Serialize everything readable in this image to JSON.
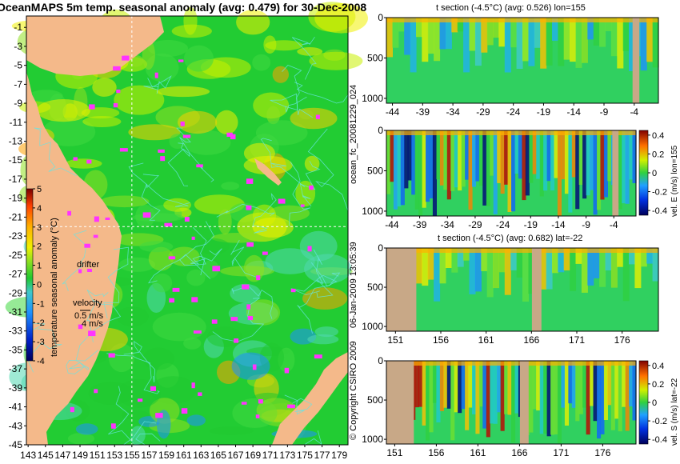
{
  "chart_data": [
    {
      "id": "map",
      "type": "heatmap",
      "title": "OceanMAPS 5m temp. seasonal anomaly (avg: 0.479) for 30-Dec-2008",
      "xticks": [
        143,
        145,
        147,
        149,
        151,
        153,
        155,
        157,
        159,
        161,
        163,
        165,
        167,
        169,
        171,
        173,
        175,
        177,
        179
      ],
      "yticks": [
        -1,
        -3,
        -5,
        -7,
        -9,
        -11,
        -13,
        -15,
        -17,
        -19,
        -21,
        -23,
        -25,
        -27,
        -29,
        -31,
        -33,
        -35,
        -37,
        -39,
        -41,
        -43,
        -45
      ],
      "xlim": [
        142.8,
        180.0
      ],
      "ylim": [
        -45,
        0.2
      ],
      "crosshair": {
        "lon": 155,
        "lat": -22
      },
      "colorbar": {
        "label": "temperature seasonal anomaly (°C)",
        "ticks": [
          5,
          4,
          3,
          2,
          1,
          0,
          -1,
          -2,
          -3,
          -4
        ],
        "range": [
          -4,
          5
        ]
      },
      "legend": {
        "drifter_label": "drifter",
        "velocity_label": "velocity",
        "velocity_value": "0.5 m/s",
        "velocity_value2": "4 m/s"
      }
    },
    {
      "id": "t-section-lon",
      "type": "heatmap",
      "title": "t section (-4.5°C) (avg: 0.526) lon=155",
      "xticks": [
        -44,
        -39,
        -34,
        -29,
        -24,
        -19,
        -14,
        -9,
        -4
      ],
      "yticks": [
        0,
        500,
        1000
      ],
      "xlim": [
        -45,
        0
      ],
      "ylim": [
        1050,
        0
      ]
    },
    {
      "id": "vel-e-section",
      "type": "heatmap",
      "xticks": [
        -44,
        -39,
        -34,
        -29,
        -24,
        -19,
        -14,
        -9,
        -4
      ],
      "yticks": [
        0,
        500,
        1000
      ],
      "xlim": [
        -45,
        0
      ],
      "colorbar": {
        "label": "vel. E (m/s) lon=155",
        "ticks": [
          0.4,
          0.2,
          0,
          -0.2,
          -0.4
        ]
      }
    },
    {
      "id": "t-section-lat",
      "type": "heatmap",
      "title": "t section (-4.5°C) (avg: 0.682) lat=-22",
      "xticks": [
        151,
        156,
        161,
        166,
        171,
        176
      ],
      "yticks": [
        0,
        500,
        1000
      ],
      "xlim": [
        150,
        180
      ]
    },
    {
      "id": "vel-s-section",
      "type": "heatmap",
      "xticks": [
        151,
        156,
        161,
        166,
        171,
        176
      ],
      "yticks": [
        0,
        500,
        1000
      ],
      "xlim": [
        150,
        180
      ],
      "colorbar": {
        "label": "vel. S (m/s) lat=-22",
        "ticks": [
          0.4,
          0.2,
          0,
          -0.2,
          -0.4
        ]
      }
    }
  ],
  "side_text": {
    "file_id": "ocean_fc_20081229_024",
    "run_date": "06-Jan-2009 13:05:39",
    "copyright": "© Copyright CSIRO 2009"
  },
  "colors": {
    "land": "#F4B98A",
    "section_land": "#C8A887",
    "contour": "#66E5E5",
    "drifter": "#FF33FF",
    "map_background": "#22CC33"
  }
}
